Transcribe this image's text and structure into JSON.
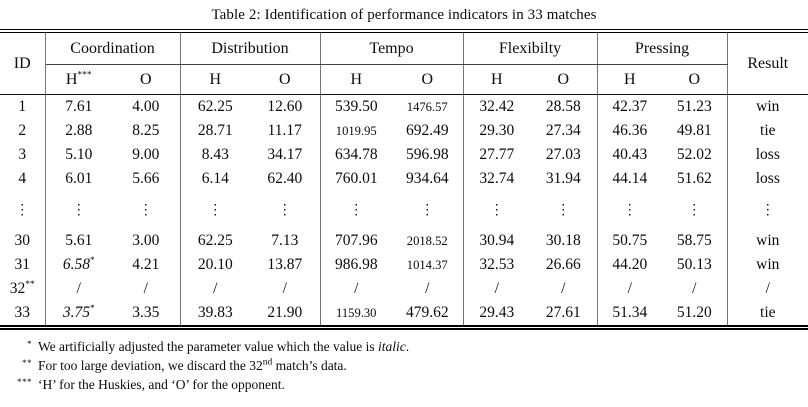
{
  "title": "Table 2: Identification of performance indicators in 33 matches",
  "header": {
    "id": "ID",
    "result": "Result",
    "groups": [
      {
        "label": "Coordination"
      },
      {
        "label": "Distribution"
      },
      {
        "label": "Tempo"
      },
      {
        "label": "Flexibilty"
      },
      {
        "label": "Pressing"
      }
    ],
    "sub": [
      {
        "v": "H",
        "sup": "***"
      },
      {
        "v": "O"
      },
      {
        "v": "H"
      },
      {
        "v": "O"
      },
      {
        "v": "H"
      },
      {
        "v": "O"
      },
      {
        "v": "H"
      },
      {
        "v": "O"
      },
      {
        "v": "H"
      },
      {
        "v": "O"
      }
    ]
  },
  "rows": [
    {
      "id": "1",
      "cells": [
        "7.61",
        "4.00",
        "62.25",
        "12.60",
        "539.50",
        "1476.57",
        "32.42",
        "28.58",
        "42.37",
        "51.23"
      ],
      "result": "win"
    },
    {
      "id": "2",
      "cells": [
        "2.88",
        "8.25",
        "28.71",
        "11.17",
        "1019.95",
        "692.49",
        "29.30",
        "27.34",
        "46.36",
        "49.81"
      ],
      "result": "tie"
    },
    {
      "id": "3",
      "cells": [
        "5.10",
        "9.00",
        "8.43",
        "34.17",
        "634.78",
        "596.98",
        "27.77",
        "27.03",
        "40.43",
        "52.02"
      ],
      "result": "loss"
    },
    {
      "id": "4",
      "cells": [
        "6.01",
        "5.66",
        "6.14",
        "62.40",
        "760.01",
        "934.64",
        "32.74",
        "31.94",
        "44.14",
        "51.62"
      ],
      "result": "loss"
    },
    {
      "dots": true,
      "id": "⋮",
      "cells": [
        "⋮",
        "⋮",
        "⋮",
        "⋮",
        "⋮",
        "⋮",
        "⋮",
        "⋮",
        "⋮",
        "⋮"
      ],
      "result": "⋮"
    },
    {
      "id": "30",
      "cells": [
        "5.61",
        "3.00",
        "62.25",
        "7.13",
        "707.96",
        "2018.52",
        "30.94",
        "30.18",
        "50.75",
        "58.75"
      ],
      "result": "win"
    },
    {
      "id": "31",
      "cells": [
        {
          "v": "6.58",
          "sup": "*",
          "italic": true
        },
        "4.21",
        "20.10",
        "13.87",
        "986.98",
        "1014.37",
        "32.53",
        "26.66",
        "44.20",
        "50.13"
      ],
      "result": "win"
    },
    {
      "id": "32",
      "id_sup": "**",
      "cells": [
        "/",
        "/",
        "/",
        "/",
        "/",
        "/",
        "/",
        "/",
        "/",
        "/"
      ],
      "result": "/"
    },
    {
      "id": "33",
      "cells": [
        {
          "v": "3.75",
          "sup": "*",
          "italic": true
        },
        "3.35",
        "39.83",
        "21.90",
        "1159.30",
        "479.62",
        "29.43",
        "27.61",
        "51.34",
        "51.20"
      ],
      "result": "tie"
    }
  ],
  "footnotes": [
    {
      "marker": "*",
      "segments": [
        {
          "t": "We artificially adjusted the parameter value which the value is "
        },
        {
          "t": "italic",
          "italic": true
        },
        {
          "t": "."
        }
      ]
    },
    {
      "marker": "**",
      "segments": [
        {
          "t": "For too large deviation, we discard the 32"
        },
        {
          "t": "nd",
          "sup": true
        },
        {
          "t": " match’s data."
        }
      ]
    },
    {
      "marker": "***",
      "segments": [
        {
          "t": "‘H’ for the Huskies, and ‘O’ for the opponent."
        }
      ]
    }
  ]
}
